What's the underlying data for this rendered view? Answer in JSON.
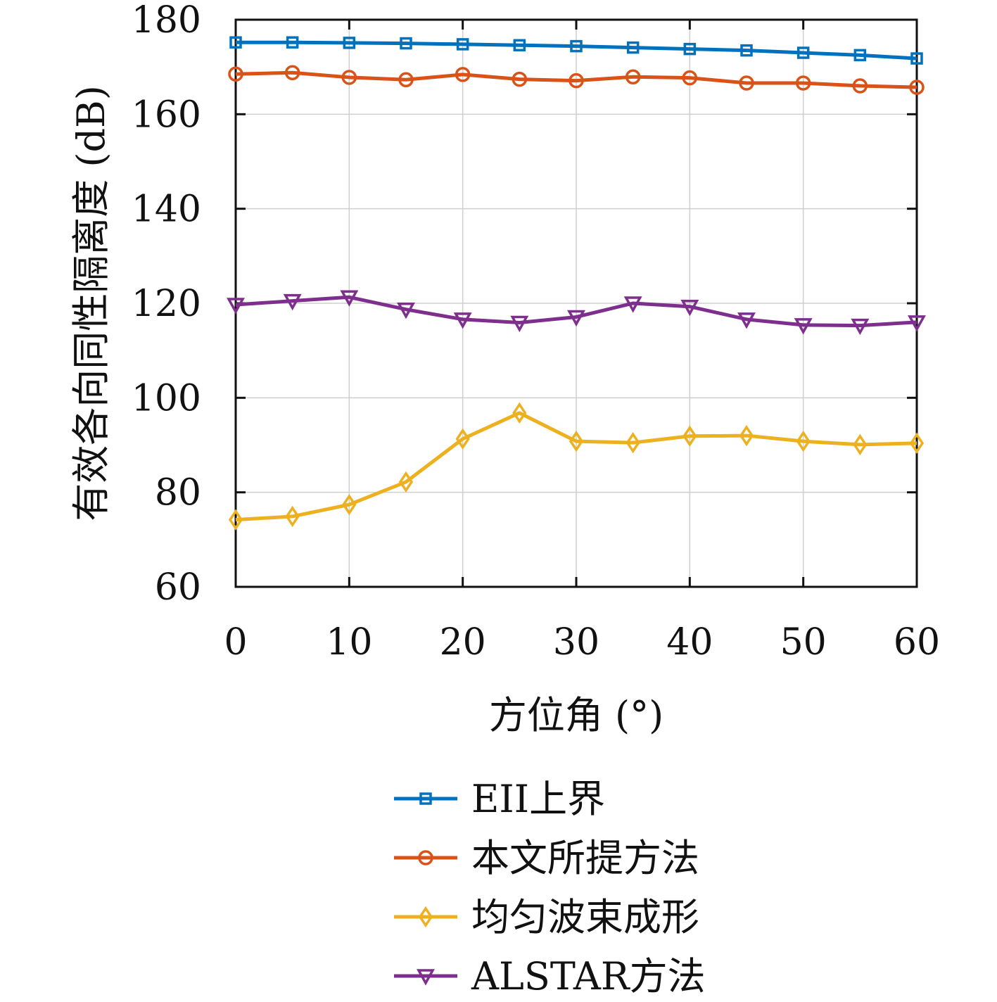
{
  "chart_data": {
    "type": "line",
    "xlabel": "方位角 (°)",
    "ylabel": "有效各向同性隔离度 (dB)",
    "xlim": [
      0,
      60
    ],
    "ylim": [
      60,
      180
    ],
    "xticks": [
      0,
      10,
      20,
      30,
      40,
      50,
      60
    ],
    "yticks": [
      60,
      80,
      100,
      120,
      140,
      160,
      180
    ],
    "x": [
      0,
      5,
      10,
      15,
      20,
      25,
      30,
      35,
      40,
      45,
      50,
      55,
      60
    ],
    "grid": true,
    "legend_position": "bottom",
    "series": [
      {
        "name": "EII上界",
        "color": "#0072BD",
        "marker": "square",
        "values": [
          175.2,
          175.2,
          175.1,
          175.0,
          174.8,
          174.6,
          174.4,
          174.1,
          173.8,
          173.5,
          173.0,
          172.5,
          171.8
        ]
      },
      {
        "name": "本文所提方法",
        "color": "#D95319",
        "marker": "circle",
        "values": [
          168.5,
          168.8,
          167.8,
          167.3,
          168.4,
          167.4,
          167.1,
          167.9,
          167.7,
          166.6,
          166.6,
          166.0,
          165.7
        ]
      },
      {
        "name": "均匀波束成形",
        "color": "#EDB120",
        "marker": "diamond",
        "values": [
          74.2,
          74.9,
          77.4,
          82.2,
          91.3,
          96.8,
          90.8,
          90.5,
          91.9,
          92.0,
          90.8,
          90.1,
          90.4
        ]
      },
      {
        "name": "ALSTAR方法",
        "color": "#7E2F8E",
        "marker": "triangle-down",
        "values": [
          119.7,
          120.5,
          121.3,
          118.7,
          116.6,
          115.9,
          117.1,
          120.0,
          119.3,
          116.6,
          115.4,
          115.3,
          116.0
        ]
      }
    ]
  }
}
